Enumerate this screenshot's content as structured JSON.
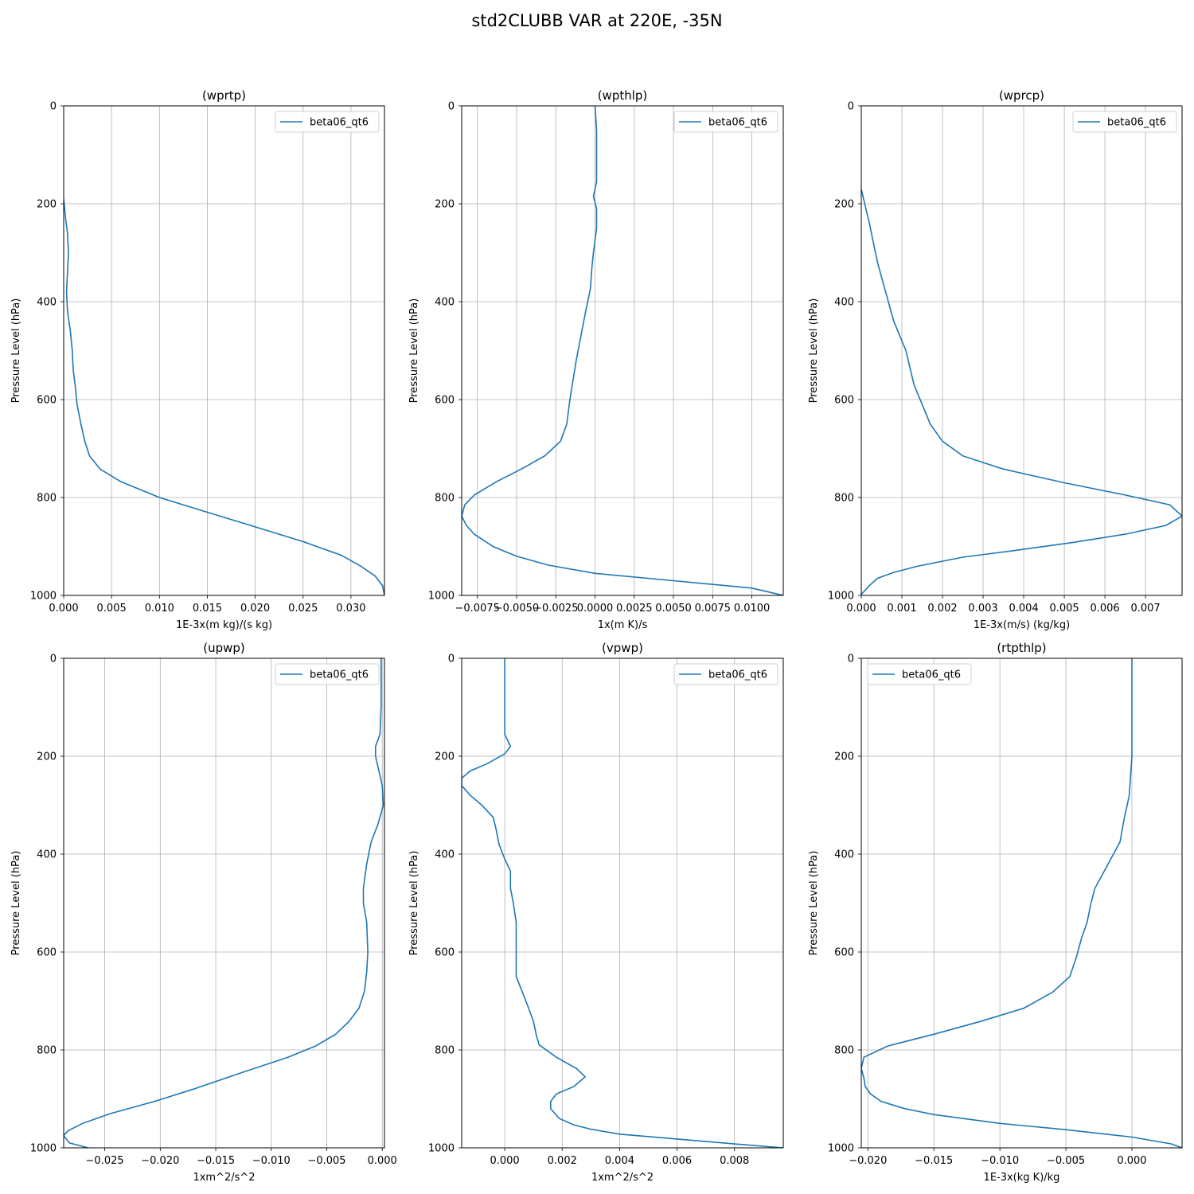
{
  "figure": {
    "title": "std2CLUBB VAR at 220E, -35N",
    "line_color": "#1f77b4"
  },
  "chart_data": [
    {
      "type": "line",
      "title": "(wprtp)",
      "xlabel": "1E-3x(m kg)/(s kg)",
      "ylabel": "Pressure Level (hPa)",
      "xlim": [
        0,
        0.0335
      ],
      "ylim": [
        1000,
        0
      ],
      "xticks": [
        0,
        0.005,
        0.01,
        0.015,
        0.02,
        0.025,
        0.03
      ],
      "xtick_labels": [
        "0.000",
        "0.005",
        "0.010",
        "0.015",
        "0.020",
        "0.025",
        "0.030"
      ],
      "yticks": [
        0,
        200,
        400,
        600,
        800,
        1000
      ],
      "ytick_labels": [
        "0",
        "200",
        "400",
        "600",
        "800",
        "1000"
      ],
      "grid": true,
      "legend": "upper right",
      "series": [
        {
          "name": "beta06_qt6",
          "points": [
            [
              0,
              190
            ],
            [
              0.0002,
              230
            ],
            [
              0.0004,
              260
            ],
            [
              0.0005,
              300
            ],
            [
              0.0004,
              340
            ],
            [
              0.0003,
              380
            ],
            [
              0.0004,
              420
            ],
            [
              0.0007,
              460
            ],
            [
              0.0009,
              500
            ],
            [
              0.001,
              540
            ],
            [
              0.0012,
              570
            ],
            [
              0.0014,
              610
            ],
            [
              0.0018,
              650
            ],
            [
              0.0022,
              685
            ],
            [
              0.0027,
              715
            ],
            [
              0.0038,
              742
            ],
            [
              0.006,
              768
            ],
            [
              0.01,
              800
            ],
            [
              0.015,
              830
            ],
            [
              0.02,
              860
            ],
            [
              0.025,
              890
            ],
            [
              0.029,
              918
            ],
            [
              0.031,
              940
            ],
            [
              0.0325,
              960
            ],
            [
              0.0333,
              980
            ],
            [
              0.0335,
              1000
            ]
          ]
        }
      ]
    },
    {
      "type": "line",
      "title": "(wpthlp)",
      "xlabel": "1x(m K)/s",
      "ylabel": "Pressure Level (hPa)",
      "xlim": [
        -0.0085,
        0.012
      ],
      "ylim": [
        1000,
        0
      ],
      "xticks": [
        -0.0075,
        -0.005,
        -0.0025,
        0,
        0.0025,
        0.005,
        0.0075,
        0.01
      ],
      "xtick_labels": [
        "−0.0075",
        "−0.0050",
        "−0.0025",
        "0.0000",
        "0.0025",
        "0.0050",
        "0.0075",
        "0.0100"
      ],
      "yticks": [
        0,
        200,
        400,
        600,
        800,
        1000
      ],
      "ytick_labels": [
        "0",
        "200",
        "400",
        "600",
        "800",
        "1000"
      ],
      "grid": true,
      "legend": "upper right",
      "series": [
        {
          "name": "beta06_qt6",
          "points": [
            [
              0,
              0
            ],
            [
              0.0001,
              50
            ],
            [
              0.0001,
              100
            ],
            [
              0.0001,
              155
            ],
            [
              -0.0001,
              185
            ],
            [
              0.0001,
              210
            ],
            [
              0.0001,
              250
            ],
            [
              -0.0001,
              300
            ],
            [
              -0.0002,
              330
            ],
            [
              -0.0003,
              375
            ],
            [
              -0.0006,
              420
            ],
            [
              -0.0009,
              470
            ],
            [
              -0.0012,
              520
            ],
            [
              -0.0014,
              560
            ],
            [
              -0.0016,
              600
            ],
            [
              -0.0018,
              650
            ],
            [
              -0.0022,
              685
            ],
            [
              -0.0032,
              715
            ],
            [
              -0.0047,
              742
            ],
            [
              -0.0063,
              768
            ],
            [
              -0.0077,
              795
            ],
            [
              -0.0083,
              815
            ],
            [
              -0.0085,
              838
            ],
            [
              -0.0082,
              857
            ],
            [
              -0.0077,
              875
            ],
            [
              -0.0065,
              900
            ],
            [
              -0.005,
              920
            ],
            [
              -0.003,
              938
            ],
            [
              0,
              955
            ],
            [
              0.005,
              970
            ],
            [
              0.01,
              985
            ],
            [
              0.012,
              1000
            ]
          ]
        }
      ]
    },
    {
      "type": "line",
      "title": "(wprcp)",
      "xlabel": "1E-3x(m/s) (kg/kg)",
      "ylabel": "Pressure Level (hPa)",
      "xlim": [
        0,
        0.0079
      ],
      "ylim": [
        1000,
        0
      ],
      "xticks": [
        0,
        0.001,
        0.002,
        0.003,
        0.004,
        0.005,
        0.006,
        0.007
      ],
      "xtick_labels": [
        "0.000",
        "0.001",
        "0.002",
        "0.003",
        "0.004",
        "0.005",
        "0.006",
        "0.007"
      ],
      "yticks": [
        0,
        200,
        400,
        600,
        800,
        1000
      ],
      "ytick_labels": [
        "0",
        "200",
        "400",
        "600",
        "800",
        "1000"
      ],
      "grid": true,
      "legend": "upper right",
      "series": [
        {
          "name": "beta06_qt6",
          "points": [
            [
              0,
              170
            ],
            [
              0.0002,
              240
            ],
            [
              0.0004,
              320
            ],
            [
              0.0006,
              380
            ],
            [
              0.0008,
              440
            ],
            [
              0.0011,
              500
            ],
            [
              0.0013,
              570
            ],
            [
              0.0015,
              610
            ],
            [
              0.0017,
              650
            ],
            [
              0.002,
              685
            ],
            [
              0.0025,
              715
            ],
            [
              0.0035,
              742
            ],
            [
              0.005,
              770
            ],
            [
              0.0065,
              795
            ],
            [
              0.0076,
              815
            ],
            [
              0.0079,
              838
            ],
            [
              0.0075,
              857
            ],
            [
              0.0065,
              875
            ],
            [
              0.0052,
              892
            ],
            [
              0.0038,
              908
            ],
            [
              0.0025,
              922
            ],
            [
              0.0014,
              940
            ],
            [
              0.0008,
              953
            ],
            [
              0.0004,
              965
            ],
            [
              0.0002,
              980
            ],
            [
              0,
              998
            ]
          ]
        }
      ]
    },
    {
      "type": "line",
      "title": "(upwp)",
      "xlabel": "1xm^2/s^2",
      "ylabel": "Pressure Level (hPa)",
      "xlim": [
        -0.0287,
        0.0002
      ],
      "ylim": [
        1000,
        0
      ],
      "xticks": [
        -0.025,
        -0.02,
        -0.015,
        -0.01,
        -0.005,
        0
      ],
      "xtick_labels": [
        "−0.025",
        "−0.020",
        "−0.015",
        "−0.010",
        "−0.005",
        "0.000"
      ],
      "yticks": [
        0,
        200,
        400,
        600,
        800,
        1000
      ],
      "ytick_labels": [
        "0",
        "200",
        "400",
        "600",
        "800",
        "1000"
      ],
      "grid": true,
      "legend": "upper right",
      "series": [
        {
          "name": "beta06_qt6",
          "points": [
            [
              -0.0001,
              0
            ],
            [
              -0.0001,
              50
            ],
            [
              -0.0001,
              100
            ],
            [
              -0.0002,
              155
            ],
            [
              -0.0006,
              180
            ],
            [
              -0.0006,
              200
            ],
            [
              -0.0003,
              230
            ],
            [
              0,
              260
            ],
            [
              0.0001,
              300
            ],
            [
              -0.0004,
              340
            ],
            [
              -0.001,
              375
            ],
            [
              -0.0014,
              420
            ],
            [
              -0.0017,
              470
            ],
            [
              -0.0017,
              500
            ],
            [
              -0.0014,
              540
            ],
            [
              -0.0013,
              600
            ],
            [
              -0.0014,
              640
            ],
            [
              -0.0016,
              680
            ],
            [
              -0.0021,
              715
            ],
            [
              -0.003,
              742
            ],
            [
              -0.0042,
              768
            ],
            [
              -0.006,
              792
            ],
            [
              -0.0085,
              815
            ],
            [
              -0.0125,
              845
            ],
            [
              -0.017,
              880
            ],
            [
              -0.0205,
              905
            ],
            [
              -0.0245,
              930
            ],
            [
              -0.027,
              950
            ],
            [
              -0.0283,
              965
            ],
            [
              -0.0287,
              975
            ],
            [
              -0.0282,
              990
            ],
            [
              -0.0265,
              1000
            ]
          ]
        }
      ]
    },
    {
      "type": "line",
      "title": "(vpwp)",
      "xlabel": "1xm^2/s^2",
      "ylabel": "Pressure Level (hPa)",
      "xlim": [
        -0.0015,
        0.0097
      ],
      "ylim": [
        1000,
        0
      ],
      "xticks": [
        0,
        0.002,
        0.004,
        0.006,
        0.008
      ],
      "xtick_labels": [
        "0.000",
        "0.002",
        "0.004",
        "0.006",
        "0.008"
      ],
      "yticks": [
        0,
        200,
        400,
        600,
        800,
        1000
      ],
      "ytick_labels": [
        "0",
        "200",
        "400",
        "600",
        "800",
        "1000"
      ],
      "grid": true,
      "legend": "upper right",
      "series": [
        {
          "name": "beta06_qt6",
          "points": [
            [
              0,
              0
            ],
            [
              0,
              50
            ],
            [
              0,
              100
            ],
            [
              0,
              155
            ],
            [
              0.0002,
              180
            ],
            [
              0,
              195
            ],
            [
              -0.0006,
              215
            ],
            [
              -0.0012,
              230
            ],
            [
              -0.0015,
              245
            ],
            [
              -0.0015,
              260
            ],
            [
              -0.0012,
              280
            ],
            [
              -0.0008,
              300
            ],
            [
              -0.0004,
              325
            ],
            [
              -0.0003,
              350
            ],
            [
              -0.0002,
              380
            ],
            [
              0,
              410
            ],
            [
              0.0002,
              435
            ],
            [
              0.0002,
              470
            ],
            [
              0.0003,
              500
            ],
            [
              0.0004,
              540
            ],
            [
              0.0004,
              580
            ],
            [
              0.0004,
              620
            ],
            [
              0.0004,
              650
            ],
            [
              0.0006,
              680
            ],
            [
              0.0008,
              710
            ],
            [
              0.001,
              742
            ],
            [
              0.0011,
              770
            ],
            [
              0.0012,
              790
            ],
            [
              0.0018,
              815
            ],
            [
              0.0025,
              838
            ],
            [
              0.0028,
              855
            ],
            [
              0.0024,
              875
            ],
            [
              0.0018,
              890
            ],
            [
              0.0016,
              905
            ],
            [
              0.0016,
              920
            ],
            [
              0.0019,
              940
            ],
            [
              0.0024,
              953
            ],
            [
              0.003,
              962
            ],
            [
              0.004,
              972
            ],
            [
              0.006,
              982
            ],
            [
              0.008,
              992
            ],
            [
              0.0097,
              1000
            ]
          ]
        }
      ]
    },
    {
      "type": "line",
      "title": "(rtpthlp)",
      "xlabel": "1E-3x(kg K)/kg",
      "ylabel": "Pressure Level (hPa)",
      "xlim": [
        -0.0205,
        0.0038
      ],
      "ylim": [
        1000,
        0
      ],
      "xticks": [
        -0.02,
        -0.015,
        -0.01,
        -0.005,
        0
      ],
      "xtick_labels": [
        "−0.020",
        "−0.015",
        "−0.010",
        "−0.005",
        "0.000"
      ],
      "yticks": [
        0,
        200,
        400,
        600,
        800,
        1000
      ],
      "ytick_labels": [
        "0",
        "200",
        "400",
        "600",
        "800",
        "1000"
      ],
      "grid": true,
      "legend": "upper left",
      "series": [
        {
          "name": "beta06_qt6",
          "points": [
            [
              0,
              0
            ],
            [
              0,
              100
            ],
            [
              0,
              200
            ],
            [
              -0.0001,
              240
            ],
            [
              -0.0002,
              280
            ],
            [
              -0.0006,
              330
            ],
            [
              -0.0009,
              375
            ],
            [
              -0.0014,
              400
            ],
            [
              -0.0022,
              440
            ],
            [
              -0.0028,
              470
            ],
            [
              -0.0031,
              500
            ],
            [
              -0.0034,
              540
            ],
            [
              -0.0038,
              570
            ],
            [
              -0.0042,
              610
            ],
            [
              -0.0047,
              650
            ],
            [
              -0.006,
              682
            ],
            [
              -0.0082,
              715
            ],
            [
              -0.0115,
              742
            ],
            [
              -0.015,
              768
            ],
            [
              -0.0185,
              792
            ],
            [
              -0.0203,
              815
            ],
            [
              -0.0205,
              838
            ],
            [
              -0.0203,
              857
            ],
            [
              -0.0202,
              875
            ],
            [
              -0.0198,
              890
            ],
            [
              -0.019,
              905
            ],
            [
              -0.0172,
              920
            ],
            [
              -0.015,
              932
            ],
            [
              -0.01,
              950
            ],
            [
              -0.005,
              963
            ],
            [
              0,
              978
            ],
            [
              0.003,
              992
            ],
            [
              0.0038,
              1000
            ]
          ]
        }
      ]
    }
  ]
}
